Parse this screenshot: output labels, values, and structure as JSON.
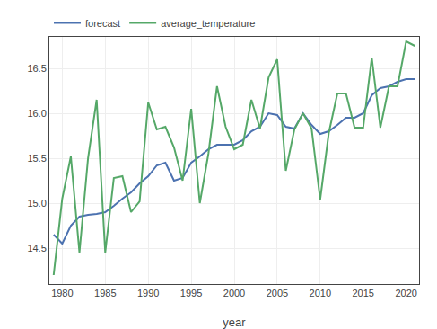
{
  "chart_data": {
    "type": "line",
    "x": [
      1979,
      1980,
      1981,
      1982,
      1983,
      1984,
      1985,
      1986,
      1987,
      1988,
      1989,
      1990,
      1991,
      1992,
      1993,
      1994,
      1995,
      1996,
      1997,
      1998,
      1999,
      2000,
      2001,
      2002,
      2003,
      2004,
      2005,
      2006,
      2007,
      2008,
      2009,
      2010,
      2011,
      2012,
      2013,
      2014,
      2015,
      2016,
      2017,
      2018,
      2019,
      2020,
      2021
    ],
    "series": [
      {
        "name": "forecast",
        "color": "#4c72b0",
        "values": [
          14.65,
          14.55,
          14.75,
          14.85,
          14.87,
          14.88,
          14.9,
          14.97,
          15.05,
          15.12,
          15.22,
          15.3,
          15.42,
          15.45,
          15.25,
          15.28,
          15.45,
          15.52,
          15.6,
          15.65,
          15.65,
          15.65,
          15.7,
          15.8,
          15.85,
          16.0,
          15.98,
          15.85,
          15.83,
          16.0,
          15.87,
          15.77,
          15.8,
          15.87,
          15.95,
          15.95,
          16.0,
          16.2,
          16.28,
          16.3,
          16.35,
          16.38,
          16.38
        ]
      },
      {
        "name": "average_temperature",
        "color": "#55a868",
        "values": [
          14.2,
          15.05,
          15.52,
          14.45,
          15.5,
          16.15,
          14.45,
          15.28,
          15.3,
          14.9,
          15.02,
          16.12,
          15.82,
          15.85,
          15.62,
          15.25,
          16.05,
          15.0,
          15.55,
          16.3,
          15.85,
          15.6,
          15.65,
          16.15,
          15.83,
          16.4,
          16.6,
          15.36,
          15.82,
          16.0,
          15.83,
          15.04,
          15.78,
          16.22,
          16.22,
          15.84,
          15.84,
          16.62,
          15.84,
          16.3,
          16.3,
          16.8,
          16.75
        ]
      }
    ],
    "x_label": "year",
    "xlim": [
      1978.5,
      2021.5
    ],
    "ylim": [
      14.1,
      16.85
    ],
    "xticks": [
      1980,
      1985,
      1990,
      1995,
      2000,
      2005,
      2010,
      2015,
      2020
    ],
    "yticks": [
      14.5,
      {
        "value": 15.0,
        "label": "15.0"
      },
      15.5,
      {
        "value": 16.0,
        "label": "16.0"
      },
      16.5
    ],
    "grid": true,
    "legend": "upper left"
  }
}
